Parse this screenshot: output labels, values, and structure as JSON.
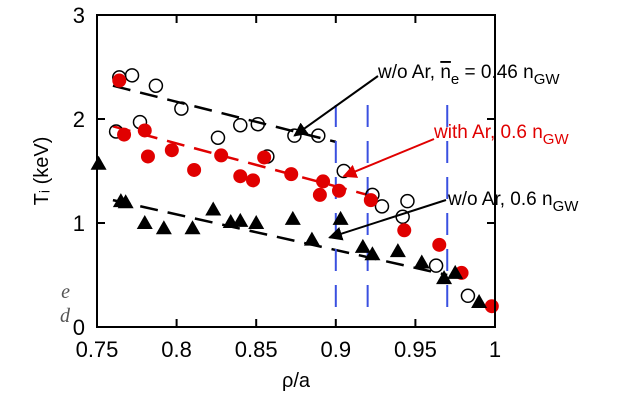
{
  "chart_data": {
    "type": "scatter",
    "xlabel": "ρ/a",
    "ylabel": "Tᵢ (keV)",
    "xlim": [
      0.75,
      1.0
    ],
    "ylim": [
      0,
      3
    ],
    "xticks": [
      "0.75",
      "0.8",
      "0.85",
      "0.9",
      "0.95",
      "1"
    ],
    "yticks": [
      "0",
      "1",
      "2",
      "3"
    ],
    "grid": false,
    "series": [
      {
        "name": "w/o Ar, ne = 0.46 nGW",
        "marker": "open-circle",
        "color": "#000000",
        "points": [
          [
            0.764,
            2.4
          ],
          [
            0.772,
            2.42
          ],
          [
            0.762,
            1.88
          ],
          [
            0.777,
            1.97
          ],
          [
            0.787,
            2.32
          ],
          [
            0.803,
            2.1
          ],
          [
            0.826,
            1.82
          ],
          [
            0.84,
            1.94
          ],
          [
            0.851,
            1.95
          ],
          [
            0.857,
            1.64
          ],
          [
            0.874,
            1.84
          ],
          [
            0.889,
            1.84
          ],
          [
            0.905,
            1.5
          ],
          [
            0.923,
            1.27
          ],
          [
            0.929,
            1.16
          ],
          [
            0.942,
            1.06
          ],
          [
            0.945,
            1.21
          ],
          [
            0.963,
            0.59
          ],
          [
            0.983,
            0.3
          ]
        ],
        "fit": [
          [
            0.76,
            2.32
          ],
          [
            0.9,
            1.78
          ]
        ]
      },
      {
        "name": "with Ar, 0.6 nGW",
        "marker": "filled-circle",
        "color": "#e00000",
        "points": [
          [
            0.764,
            2.37
          ],
          [
            0.767,
            1.85
          ],
          [
            0.78,
            1.89
          ],
          [
            0.782,
            1.64
          ],
          [
            0.797,
            1.7
          ],
          [
            0.811,
            1.51
          ],
          [
            0.828,
            1.65
          ],
          [
            0.84,
            1.45
          ],
          [
            0.848,
            1.41
          ],
          [
            0.855,
            1.63
          ],
          [
            0.872,
            1.47
          ],
          [
            0.89,
            1.27
          ],
          [
            0.892,
            1.4
          ],
          [
            0.902,
            1.31
          ],
          [
            0.922,
            1.22
          ],
          [
            0.943,
            0.93
          ],
          [
            0.965,
            0.79
          ],
          [
            0.979,
            0.52
          ],
          [
            0.998,
            0.2
          ]
        ],
        "fit": [
          [
            0.76,
            1.93
          ],
          [
            0.92,
            1.27
          ]
        ]
      },
      {
        "name": "w/o Ar, 0.6 nGW",
        "marker": "filled-triangle",
        "color": "#000000",
        "points": [
          [
            0.751,
            1.57
          ],
          [
            0.765,
            1.21
          ],
          [
            0.768,
            1.2
          ],
          [
            0.78,
            1.0
          ],
          [
            0.792,
            0.95
          ],
          [
            0.81,
            0.95
          ],
          [
            0.823,
            1.13
          ],
          [
            0.834,
            1.01
          ],
          [
            0.84,
            1.02
          ],
          [
            0.85,
            1.0
          ],
          [
            0.873,
            1.04
          ],
          [
            0.885,
            0.84
          ],
          [
            0.903,
            1.04
          ],
          [
            0.923,
            0.7
          ],
          [
            0.917,
            0.77
          ],
          [
            0.939,
            0.73
          ],
          [
            0.954,
            0.62
          ],
          [
            0.968,
            0.47
          ],
          [
            0.975,
            0.52
          ],
          [
            0.99,
            0.24
          ]
        ],
        "fit": [
          [
            0.76,
            1.22
          ],
          [
            0.97,
            0.5
          ]
        ]
      }
    ],
    "vlines_x": [
      0.9,
      0.92,
      0.97
    ],
    "annotations": [
      {
        "pre": "w/o Ar, ",
        "bar": "n",
        "barsub": "e",
        "mid": " = 0.46 n",
        "sub": "GW",
        "color": "#000000",
        "tip_x": 0.874,
        "tip_y": 1.84
      },
      {
        "pre": "with Ar, 0.6 n",
        "bar": "",
        "barsub": "",
        "mid": "",
        "sub": "GW",
        "color": "#e00000",
        "tip_x": 0.905,
        "tip_y": 1.45
      },
      {
        "pre": "w/o Ar, 0.6 n",
        "bar": "",
        "barsub": "",
        "mid": "",
        "sub": "GW",
        "color": "#000000",
        "tip_x": 0.896,
        "tip_y": 0.86
      }
    ],
    "stray_text": [
      "e",
      "d"
    ]
  }
}
